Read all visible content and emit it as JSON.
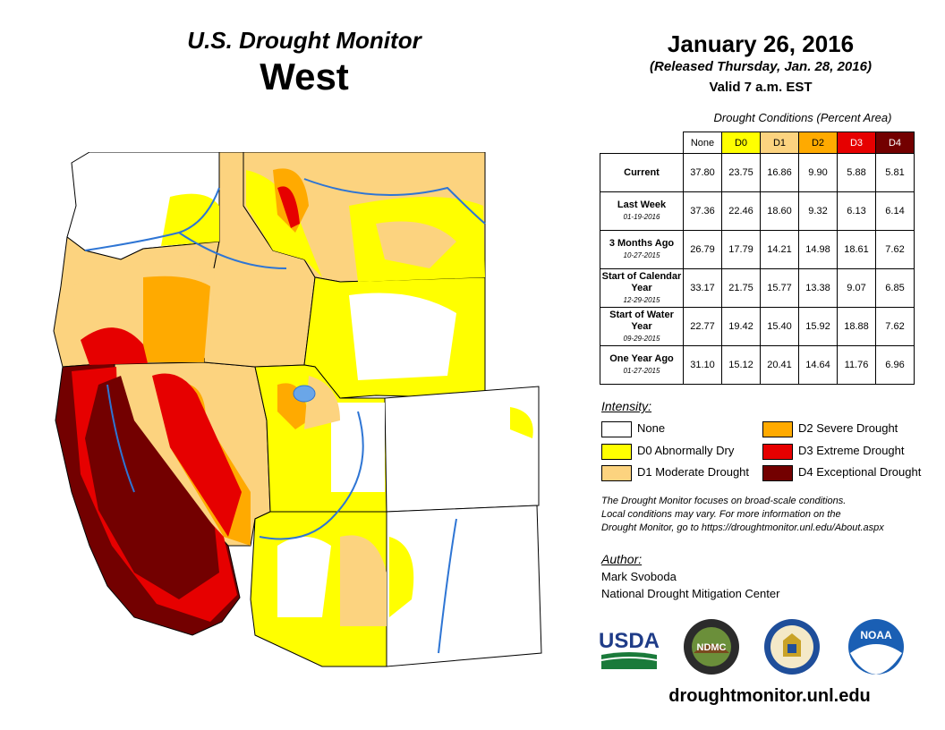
{
  "header": {
    "title": "U.S. Drought Monitor",
    "region": "West",
    "date": "January 26, 2016",
    "released": "(Released Thursday, Jan. 28, 2016)",
    "valid": "Valid 7 a.m. EST"
  },
  "stats": {
    "caption": "Drought Conditions (Percent Area)",
    "columns": [
      "None",
      "D0",
      "D1",
      "D2",
      "D3",
      "D4"
    ],
    "rows": [
      {
        "label": "Current",
        "sublabel": "",
        "values": [
          "37.80",
          "23.75",
          "16.86",
          "9.90",
          "5.88",
          "5.81"
        ]
      },
      {
        "label": "Last Week",
        "sublabel": "01-19-2016",
        "values": [
          "37.36",
          "22.46",
          "18.60",
          "9.32",
          "6.13",
          "6.14"
        ]
      },
      {
        "label": "3 Months Ago",
        "sublabel": "10-27-2015",
        "values": [
          "26.79",
          "17.79",
          "14.21",
          "14.98",
          "18.61",
          "7.62"
        ]
      },
      {
        "label": "Start of Calendar Year",
        "sublabel": "12-29-2015",
        "values": [
          "33.17",
          "21.75",
          "15.77",
          "13.38",
          "9.07",
          "6.85"
        ]
      },
      {
        "label": "Start of Water Year",
        "sublabel": "09-29-2015",
        "values": [
          "22.77",
          "19.42",
          "15.40",
          "15.92",
          "18.88",
          "7.62"
        ]
      },
      {
        "label": "One Year Ago",
        "sublabel": "01-27-2015",
        "values": [
          "31.10",
          "15.12",
          "20.41",
          "14.64",
          "11.76",
          "6.96"
        ]
      }
    ]
  },
  "legend": {
    "title": "Intensity:",
    "items": [
      {
        "label": "None",
        "color": "#ffffff"
      },
      {
        "label": "D0 Abnormally Dry",
        "color": "#ffff00"
      },
      {
        "label": "D1 Moderate Drought",
        "color": "#fcd37f"
      },
      {
        "label": "D2 Severe Drought",
        "color": "#ffaa00"
      },
      {
        "label": "D3 Extreme Drought",
        "color": "#e60000"
      },
      {
        "label": "D4 Exceptional Drought",
        "color": "#730000"
      }
    ]
  },
  "note": {
    "line1": "The Drought Monitor focuses on broad-scale conditions.",
    "line2": "Local conditions may vary. For more information on the",
    "line3": "Drought Monitor, go to https://droughtmonitor.unl.edu/About.aspx"
  },
  "author": {
    "title": "Author:",
    "name": "Mark Svoboda",
    "org": "National Drought Mitigation Center"
  },
  "logos": {
    "usda": "USDA",
    "ndmc": "NDMC",
    "noaa": "NOAA"
  },
  "footer": {
    "url": "droughtmonitor.unl.edu"
  }
}
